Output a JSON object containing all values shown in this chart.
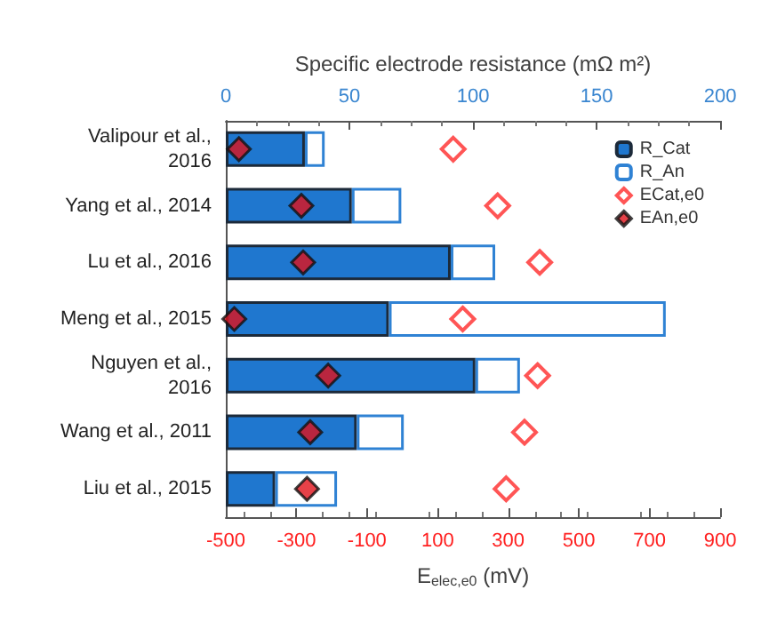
{
  "chart_data": {
    "type": "bar",
    "orientation": "horizontal",
    "stacked": true,
    "categories": [
      "Valipour et al.,\n2016",
      "Yang et al., 2014",
      "Lu et al., 2016",
      "Meng et al., 2015",
      "Nguyen et al.,\n2016",
      "Wang et al., 2011",
      "Liu et al., 2015"
    ],
    "series": [
      {
        "name": "R_Cat",
        "color": "#1f77cf",
        "axis": "x2",
        "values": [
          32,
          51,
          91,
          66,
          101,
          53,
          20
        ]
      },
      {
        "name": "R_An",
        "color": "#ffffff",
        "axis": "x2",
        "values": [
          8,
          20,
          18,
          112,
          18,
          19,
          25
        ]
      },
      {
        "name": "ECat,e0",
        "type": "scatter",
        "color": "#ff2a2a",
        "marker": "diamond",
        "values": [
          144,
          270,
          389,
          171,
          383,
          346,
          294
        ]
      },
      {
        "name": "EAn,e0",
        "type": "scatter",
        "color": "#e0111a",
        "marker": "diamond",
        "values": [
          -463,
          -286,
          -281,
          -476,
          -210,
          -261,
          -270
        ]
      }
    ],
    "xlabel": "E$_{elec,e0}$ (mV)",
    "xlim": [
      -500,
      900
    ],
    "xticks": [
      -500,
      -300,
      -100,
      100,
      300,
      500,
      700,
      900
    ],
    "x2label": "Specific electrode resistance (mΩ m²)",
    "x2lim": [
      0,
      200
    ],
    "x2ticks": [
      0,
      50,
      100,
      150,
      200
    ],
    "legend": "top right",
    "grid": false
  }
}
